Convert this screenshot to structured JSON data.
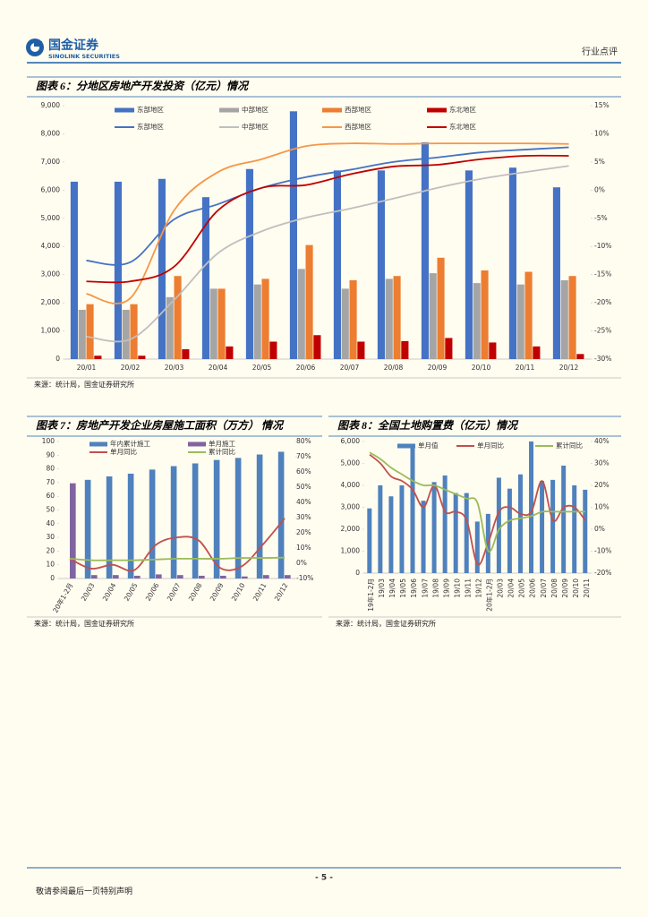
{
  "header": {
    "logo_cn": "国金证券",
    "logo_en": "SINOLINK SECURITIES",
    "section": "行业点评"
  },
  "chart_data": [
    {
      "type": "bar",
      "title": "图表 6：分地区房地产开发投资（亿元）情况",
      "source": "来源：统计局，国金证券研究所",
      "categories": [
        "20/01",
        "20/02",
        "20/03",
        "20/04",
        "20/05",
        "20/06",
        "20/07",
        "20/08",
        "20/09",
        "20/10",
        "20/11",
        "20/12"
      ],
      "ylim": [
        0,
        9000
      ],
      "yticks": [
        0,
        {
          "value": 1000,
          "label": "1,000"
        },
        {
          "value": 2000,
          "label": "2,000"
        },
        {
          "value": 3000,
          "label": "3,000"
        },
        {
          "value": 4000,
          "label": "4,000"
        },
        {
          "value": 5000,
          "label": "5,000"
        },
        {
          "value": 6000,
          "label": "6,000"
        },
        {
          "value": 7000,
          "label": "7,000"
        },
        {
          "value": 8000,
          "label": "8,000"
        },
        {
          "value": 9000,
          "label": "9,000"
        }
      ],
      "y2lim": [
        -30,
        15
      ],
      "y2ticks": [
        {
          "value": -30,
          "label": "-30%"
        },
        {
          "value": -25,
          "label": "-25%"
        },
        {
          "value": -20,
          "label": "-20%"
        },
        {
          "value": -15,
          "label": "-15%"
        },
        {
          "value": -10,
          "label": "-10%"
        },
        {
          "value": -5,
          "label": "-5%"
        },
        {
          "value": 0,
          "label": "0%"
        },
        {
          "value": 5,
          "label": "5%"
        },
        {
          "value": 10,
          "label": "10%"
        },
        {
          "value": 15,
          "label": "15%"
        }
      ],
      "grid": false,
      "legend": "top",
      "series": [
        {
          "name": "东部地区",
          "type": "bar",
          "color": "#4472c4",
          "values": [
            6300,
            6300,
            6400,
            5750,
            6750,
            8800,
            6700,
            6700,
            7700,
            6700,
            6800,
            6100
          ]
        },
        {
          "name": "中部地区",
          "type": "bar",
          "color": "#a5a5a5",
          "values": [
            1750,
            1750,
            2200,
            2500,
            2650,
            3200,
            2500,
            2850,
            3050,
            2700,
            2650,
            2800
          ]
        },
        {
          "name": "西部地区",
          "type": "bar",
          "color": "#ed7d31",
          "values": [
            1950,
            1950,
            2950,
            2500,
            2850,
            4050,
            2800,
            2950,
            3600,
            3150,
            3100,
            2950
          ]
        },
        {
          "name": "东北地区",
          "type": "bar",
          "color": "#c00000",
          "values": [
            120,
            120,
            350,
            450,
            620,
            850,
            620,
            640,
            750,
            590,
            450,
            180
          ]
        },
        {
          "name": "东部地区",
          "type": "line",
          "axis": "y2",
          "color": "#4472c4",
          "values": [
            -12.5,
            -12.8,
            -5.2,
            -2.5,
            0.4,
            2.3,
            3.6,
            5.0,
            5.8,
            6.7,
            7.2,
            7.6
          ]
        },
        {
          "name": "中部地区",
          "type": "line",
          "axis": "y2",
          "color": "#bfbfbf",
          "values": [
            -26,
            -26.5,
            -19.5,
            -11.2,
            -7.3,
            -4.9,
            -3.3,
            -1.5,
            0.4,
            2.0,
            3.2,
            4.3
          ]
        },
        {
          "name": "西部地区",
          "type": "line",
          "axis": "y2",
          "color": "#f79646",
          "values": [
            -18.4,
            -19.2,
            -3.6,
            3.2,
            5.5,
            7.8,
            8.3,
            8.2,
            8.3,
            8.3,
            8.3,
            8.2
          ]
        },
        {
          "name": "东北地区",
          "type": "line",
          "axis": "y2",
          "color": "#c00000",
          "values": [
            -16.2,
            -16.2,
            -13.6,
            -3.6,
            0.4,
            0.9,
            2.8,
            4.2,
            4.5,
            5.5,
            6.1,
            6.1
          ]
        }
      ]
    },
    {
      "type": "bar",
      "title": "图表 7：房地产开发企业房屋施工面积（万方） 情况",
      "source": "来源：统计局，国金证券研究所",
      "categories": [
        "20年1-2月",
        "20/03",
        "20/04",
        "20/05",
        "20/06",
        "20/07",
        "20/08",
        "20/09",
        "20/10",
        "20/11",
        "20/12"
      ],
      "ylim": [
        0,
        100
      ],
      "yticks": [
        0,
        10,
        20,
        30,
        40,
        50,
        60,
        70,
        80,
        90,
        100
      ],
      "y2lim": [
        -10,
        80
      ],
      "y2ticks": [
        {
          "value": -10,
          "label": "-10%"
        },
        {
          "value": 0,
          "label": "0%"
        },
        {
          "value": 10,
          "label": "10%"
        },
        {
          "value": 20,
          "label": "20%"
        },
        {
          "value": 30,
          "label": "30%"
        },
        {
          "value": 40,
          "label": "40%"
        },
        {
          "value": 50,
          "label": "50%"
        },
        {
          "value": 60,
          "label": "60%"
        },
        {
          "value": 70,
          "label": "70%"
        },
        {
          "value": 80,
          "label": "80%"
        }
      ],
      "grid": false,
      "legend": "top",
      "series": [
        {
          "name": "年内累计施工",
          "type": "bar",
          "color": "#4f81bd",
          "values": [
            null,
            72,
            74.5,
            76.5,
            79.5,
            82,
            84,
            86.5,
            88,
            90.5,
            92.5
          ]
        },
        {
          "name": "单月施工",
          "type": "bar",
          "color": "#8064a2",
          "values": [
            69.5,
            2.5,
            2.5,
            2,
            3,
            2.5,
            2,
            2,
            1.5,
            2.5,
            2.5
          ]
        },
        {
          "name": "单月同比",
          "type": "line",
          "axis": "y2",
          "color": "#c0504d",
          "values": [
            3,
            -3.5,
            -1,
            -4.5,
            12,
            17,
            15,
            -3,
            -2,
            12.5,
            29.5
          ]
        },
        {
          "name": "累计同比",
          "type": "line",
          "axis": "y2",
          "color": "#9bbb59",
          "values": [
            3,
            2,
            2,
            2,
            2.5,
            3,
            3,
            3,
            3.5,
            3.5,
            3.7
          ]
        }
      ]
    },
    {
      "type": "bar",
      "title": "图表 8：全国土地购置费（亿元）情况",
      "source": "来源：统计局，国金证券研究所",
      "categories": [
        "19年1-2月",
        "19/03",
        "19/04",
        "19/05",
        "19/06",
        "19/07",
        "19/08",
        "19/09",
        "19/10",
        "19/11",
        "19/12",
        "20年1-2月",
        "20/03",
        "20/04",
        "20/05",
        "20/06",
        "20/07",
        "20/08",
        "20/09",
        "20/10",
        "20/11"
      ],
      "ylim": [
        0,
        6000
      ],
      "yticks": [
        0,
        {
          "value": 1000,
          "label": "1,000"
        },
        {
          "value": 2000,
          "label": "2,000"
        },
        {
          "value": 3000,
          "label": "3,000"
        },
        {
          "value": 4000,
          "label": "4,000"
        },
        {
          "value": 5000,
          "label": "5,000"
        },
        {
          "value": 6000,
          "label": "6,000"
        }
      ],
      "y2lim": [
        -20,
        40
      ],
      "y2ticks": [
        {
          "value": -20,
          "label": "-20%"
        },
        {
          "value": -10,
          "label": "-10%"
        },
        {
          "value": 0,
          "label": "0%"
        },
        {
          "value": 10,
          "label": "10%"
        },
        {
          "value": 20,
          "label": "20%"
        },
        {
          "value": 30,
          "label": "30%"
        },
        {
          "value": 40,
          "label": "40%"
        }
      ],
      "grid": false,
      "legend": "top",
      "series": [
        {
          "name": "单月值",
          "type": "bar",
          "color": "#4f81bd",
          "values": [
            2950,
            4000,
            3500,
            4000,
            5700,
            3300,
            4150,
            4450,
            3650,
            3650,
            2350,
            2700,
            4350,
            3850,
            4500,
            6000,
            4200,
            4250,
            4900,
            4000,
            3800
          ]
        },
        {
          "name": "单月同比",
          "type": "line",
          "axis": "y2",
          "color": "#c0504d",
          "values": [
            34,
            30,
            24,
            22,
            18,
            10,
            20,
            8,
            8,
            4,
            -16,
            -6,
            8,
            10,
            7,
            8,
            22,
            4,
            10,
            10,
            4
          ]
        },
        {
          "name": "累计同比",
          "type": "line",
          "axis": "y2",
          "color": "#9bbb59",
          "values": [
            35,
            32,
            28,
            25,
            22,
            20,
            20,
            18,
            16,
            14,
            12,
            -10,
            0,
            4,
            5,
            6,
            8,
            8,
            8,
            8,
            8
          ]
        }
      ]
    }
  ],
  "footer": {
    "page": "- 5 -",
    "notice": "敬请参阅最后一页特别声明"
  }
}
